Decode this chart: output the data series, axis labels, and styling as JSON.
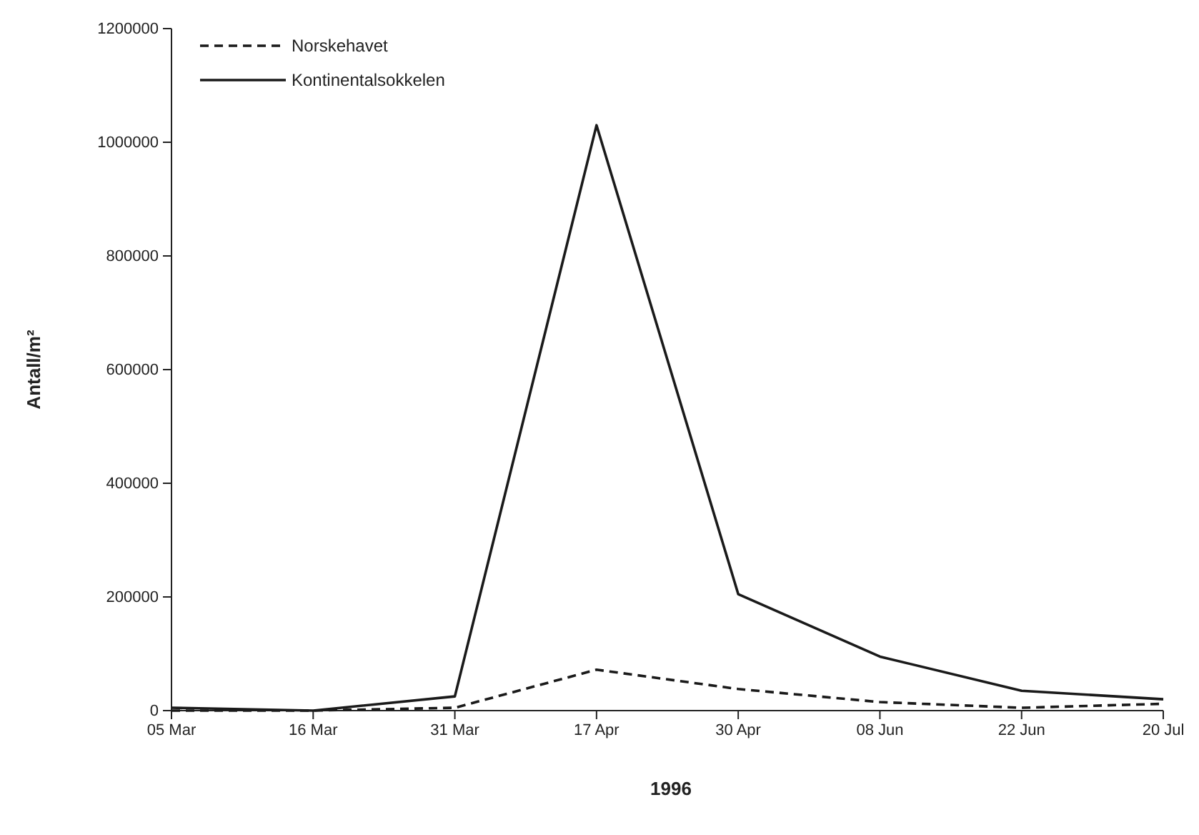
{
  "chart_data": {
    "type": "line",
    "xlabel": "1996",
    "ylabel": "Antall/m²",
    "categories": [
      "05 Mar",
      "16 Mar",
      "31 Mar",
      "17 Apr",
      "30 Apr",
      "08 Jun",
      "22 Jun",
      "20 Jul"
    ],
    "series": [
      {
        "name": "Norskehavet",
        "color": "#1a1a1a",
        "line_style": "dashed",
        "values": [
          0,
          0,
          5000,
          72000,
          38000,
          15000,
          5000,
          12000
        ]
      },
      {
        "name": "Kontinentalsokkelen",
        "color": "#1a1a1a",
        "line_style": "solid",
        "values": [
          5000,
          0,
          25000,
          1030000,
          205000,
          95000,
          35000,
          20000
        ]
      }
    ],
    "ylim": [
      0,
      1200000
    ],
    "yticks": [
      0,
      200000,
      400000,
      600000,
      800000,
      1000000,
      1200000
    ],
    "grid": false,
    "legend": "top left",
    "marker": "none"
  }
}
